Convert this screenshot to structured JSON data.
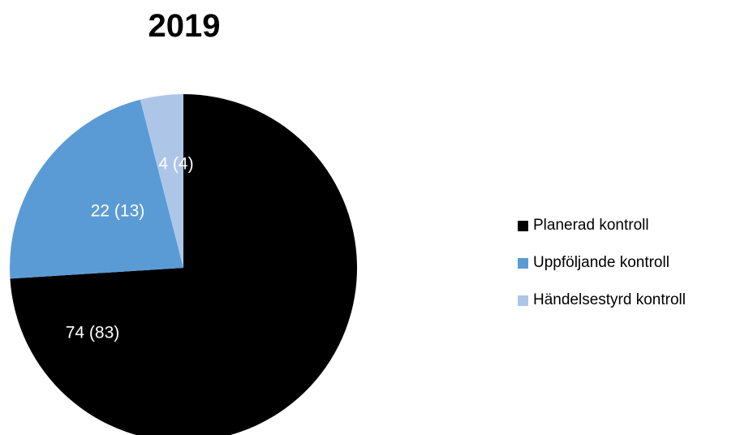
{
  "chart_data": {
    "type": "pie",
    "title": "2019",
    "slices": [
      {
        "name": "Planerad kontroll",
        "value": 74,
        "label": "74 (83)",
        "color": "#000000",
        "label_color": "#ffffff"
      },
      {
        "name": "Uppföljande kontroll",
        "value": 22,
        "label": "22 (13)",
        "color": "#5b9bd5",
        "label_color": "#ffffff"
      },
      {
        "name": "Händelsestyrd kontroll",
        "value": 4,
        "label": "4 (4)",
        "color": "#adc6e8",
        "label_color": "#ffffff"
      }
    ],
    "legend_position": "right"
  }
}
